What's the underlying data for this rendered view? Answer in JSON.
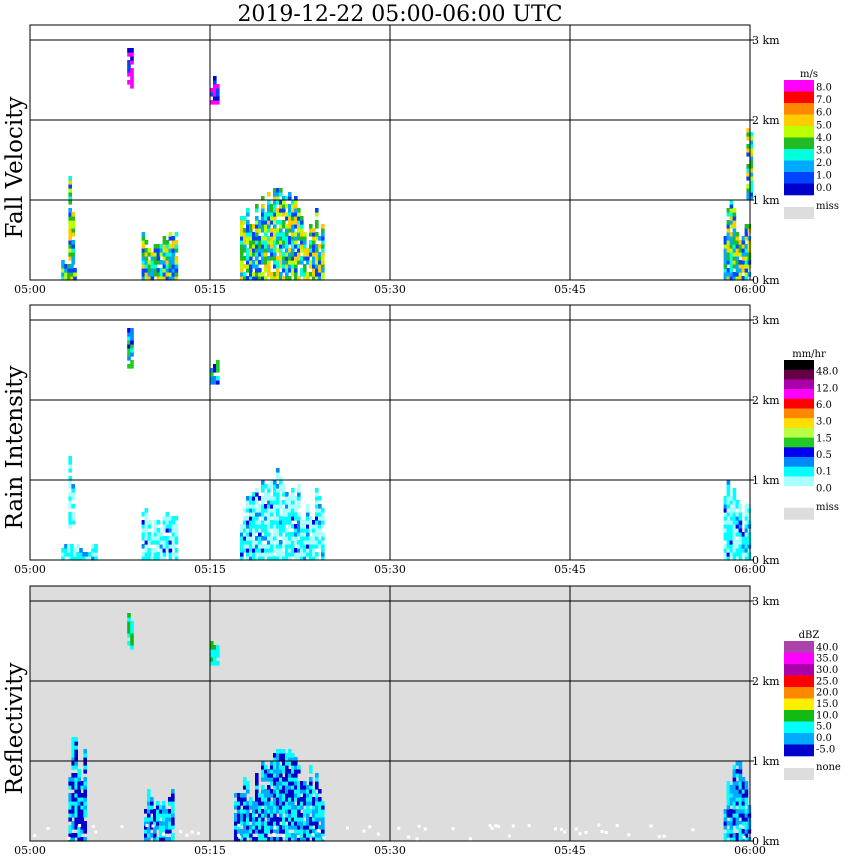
{
  "title": "2019-12-22   05:00-06:00 UTC",
  "colors": {
    "grid": "#000000",
    "missing": "#dddddd",
    "frame": "#000000"
  },
  "chart_data": [
    {
      "type": "heatmap",
      "ylabel": "Fall Velocity",
      "x_ticks": [
        "05:00",
        "05:15",
        "05:30",
        "05:45",
        "06:00"
      ],
      "y_ticks": [
        "0 km",
        "1 km",
        "2 km",
        "3 km"
      ],
      "xlim_minutes": [
        0,
        60
      ],
      "ylim_km": [
        0,
        3.2
      ],
      "background": "white",
      "legend": {
        "unit": "m/s",
        "labels": [
          "8.0",
          "7.0",
          "6.0",
          "5.0",
          "4.0",
          "3.0",
          "2.0",
          "1.0",
          "0.0"
        ],
        "colors": [
          "#ff00ff",
          "#ff0000",
          "#ff8800",
          "#ffcc00",
          "#bbff00",
          "#22bb22",
          "#00ffdd",
          "#00aaff",
          "#0044ff",
          "#0000cc"
        ],
        "miss_label": "miss"
      },
      "regions": [
        {
          "t0": 2.6,
          "t1": 3.8,
          "h0": 0,
          "h1": 0.25,
          "level": "0.0-1.0"
        },
        {
          "t0": 3.2,
          "t1": 3.6,
          "h0": 0.2,
          "h1": 1.3,
          "level": "2.0-5.0"
        },
        {
          "t0": 9.3,
          "t1": 12.3,
          "h0": 0,
          "h1": 0.65,
          "level": "2.0-5.0"
        },
        {
          "t0": 8.1,
          "t1": 8.5,
          "h0": 2.4,
          "h1": 2.95,
          "level": "6.0-8.0"
        },
        {
          "t0": 15.0,
          "t1": 15.6,
          "h0": 2.2,
          "h1": 2.55,
          "level": "1.0-8.0"
        },
        {
          "t0": 17.5,
          "t1": 24.5,
          "h0": 0,
          "h1": 1.15,
          "level": "2.0-5.0"
        },
        {
          "t0": 57.8,
          "t1": 60,
          "h0": 0,
          "h1": 1.0,
          "level": "1.0-3.0"
        },
        {
          "t0": 59.7,
          "t1": 60,
          "h0": 1.0,
          "h1": 2.0,
          "level": "1.0-3.0"
        }
      ]
    },
    {
      "type": "heatmap",
      "ylabel": "Rain Intensity",
      "x_ticks": [
        "05:00",
        "05:15",
        "05:30",
        "05:45",
        "06:00"
      ],
      "y_ticks": [
        "0 km",
        "1 km",
        "2 km",
        "3 km"
      ],
      "xlim_minutes": [
        0,
        60
      ],
      "ylim_km": [
        0,
        3.2
      ],
      "background": "white",
      "legend": {
        "unit": "mm/hr",
        "labels": [
          "48.0",
          "12.0",
          "6.0",
          "3.0",
          "1.5",
          "0.5",
          "0.1",
          "0.0"
        ],
        "colors": [
          "#000000",
          "#660044",
          "#aa00aa",
          "#ff00ff",
          "#ff0000",
          "#ff8800",
          "#ffdd00",
          "#bbff44",
          "#22cc22",
          "#0000ee",
          "#0088ff",
          "#00ffff",
          "#aaffff",
          "#ffffff"
        ],
        "miss_label": "miss"
      },
      "regions": [
        {
          "t0": 2.6,
          "t1": 5.5,
          "h0": 0,
          "h1": 0.2,
          "level": "0.0-0.1"
        },
        {
          "t0": 3.2,
          "t1": 3.6,
          "h0": 0.4,
          "h1": 1.3,
          "level": "0.0-0.1"
        },
        {
          "t0": 9.3,
          "t1": 12.3,
          "h0": 0,
          "h1": 0.65,
          "level": "0.0-0.1"
        },
        {
          "t0": 8.1,
          "t1": 8.5,
          "h0": 2.4,
          "h1": 2.95,
          "level": "0.1-1.5"
        },
        {
          "t0": 15.0,
          "t1": 15.6,
          "h0": 2.2,
          "h1": 2.55,
          "level": "0.1-0.5"
        },
        {
          "t0": 17.5,
          "t1": 24.5,
          "h0": 0,
          "h1": 1.15,
          "level": "0.0-0.1"
        },
        {
          "t0": 57.8,
          "t1": 60,
          "h0": 0,
          "h1": 1.0,
          "level": "0.1-0.5"
        }
      ]
    },
    {
      "type": "heatmap",
      "ylabel": "Reflectivity",
      "x_ticks": [
        "05:00",
        "05:15",
        "05:30",
        "05:45",
        "06:00"
      ],
      "y_ticks": [
        "0 km",
        "1 km",
        "2 km",
        "3 km"
      ],
      "xlim_minutes": [
        0,
        60
      ],
      "ylim_km": [
        0,
        3.2
      ],
      "background": "none",
      "legend": {
        "unit": "dBZ",
        "labels": [
          "40.0",
          "35.0",
          "30.0",
          "25.0",
          "20.0",
          "15.0",
          "10.0",
          "5.0",
          "0.0",
          "-5.0"
        ],
        "colors": [
          "#aa44aa",
          "#ff00ff",
          "#aa00aa",
          "#ff0000",
          "#ff8800",
          "#ffee00",
          "#11bb11",
          "#00ffff",
          "#00aaff",
          "#0000cc"
        ],
        "miss_label": "none"
      },
      "regions": [
        {
          "t0": 3.2,
          "t1": 4.6,
          "h0": 0,
          "h1": 1.3,
          "level": "0.0-10.0"
        },
        {
          "t0": 9.5,
          "t1": 12.0,
          "h0": 0,
          "h1": 0.65,
          "level": "-5.0-5.0"
        },
        {
          "t0": 8.1,
          "t1": 8.5,
          "h0": 2.4,
          "h1": 2.95,
          "level": "5.0-15.0"
        },
        {
          "t0": 15.0,
          "t1": 15.6,
          "h0": 2.2,
          "h1": 2.55,
          "level": "10.0-15.0"
        },
        {
          "t0": 17.0,
          "t1": 24.5,
          "h0": 0,
          "h1": 1.15,
          "level": "-5.0-10.0"
        },
        {
          "t0": 57.8,
          "t1": 60,
          "h0": 0,
          "h1": 1.0,
          "level": "0.0-10.0"
        }
      ]
    }
  ]
}
